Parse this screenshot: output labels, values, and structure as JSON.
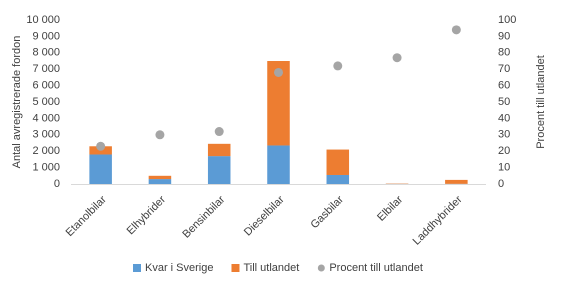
{
  "chart_data": {
    "type": "bar",
    "stacked": true,
    "categories": [
      "Etanolbilar",
      "Elhybrider",
      "Bensinbilar",
      "Dieselbilar",
      "Gasbilar",
      "Elbilar",
      "Laddhybrider"
    ],
    "series": [
      {
        "name": "Kvar i Sverige",
        "color": "#5b9bd5",
        "values": [
          1800,
          300,
          1700,
          2350,
          550,
          10,
          10
        ]
      },
      {
        "name": "Till utlandet",
        "color": "#ed7d31",
        "values": [
          500,
          200,
          750,
          5150,
          1550,
          20,
          240
        ]
      },
      {
        "name": "Procent till utlandet",
        "color": "#a5a5a5",
        "type": "scatter",
        "axis": "y2",
        "values": [
          23,
          30,
          32,
          68,
          72,
          77,
          94
        ]
      }
    ],
    "y_label": "Antal avregistrerade fordon",
    "y2_label": "Procent till utlandet",
    "ylim": [
      0,
      10000
    ],
    "yticks": [
      0,
      {
        "value": 1000,
        "label": "1 000"
      },
      {
        "value": 2000,
        "label": "2 000"
      },
      {
        "value": 3000,
        "label": "3 000"
      },
      {
        "value": 4000,
        "label": "4 000"
      },
      {
        "value": 5000,
        "label": "5 000"
      },
      {
        "value": 6000,
        "label": "6 000"
      },
      {
        "value": 7000,
        "label": "7 000"
      },
      {
        "value": 8000,
        "label": "8 000"
      },
      {
        "value": 9000,
        "label": "9 000"
      },
      {
        "value": 10000,
        "label": "10 000"
      }
    ],
    "y2lim": [
      0,
      100
    ],
    "y2ticks": [
      0,
      10,
      20,
      30,
      40,
      50,
      60,
      70,
      80,
      90,
      100
    ],
    "grid": false,
    "legend": "bottom"
  }
}
